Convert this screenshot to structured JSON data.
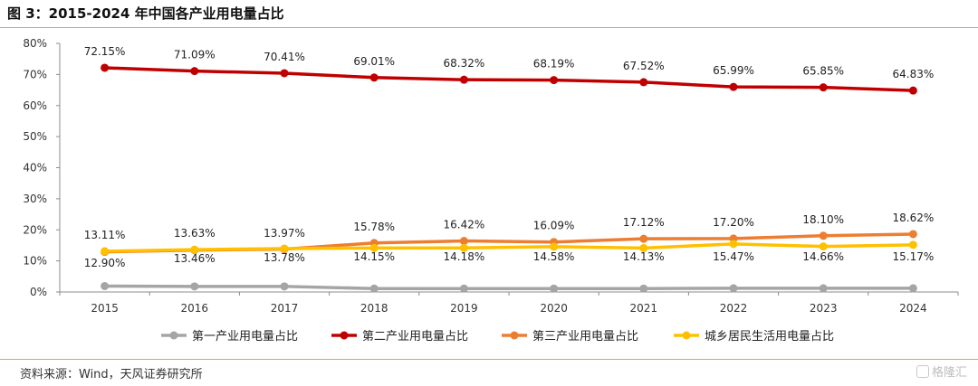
{
  "header": {
    "title": "图 3：2015-2024 年中国各产业用电量占比"
  },
  "footer": {
    "source": "资料来源：Wind，天风证券研究所",
    "watermark": "格隆汇"
  },
  "colors": {
    "primary": "#a5a5a5",
    "secondary": "#c00000",
    "tertiary": "#ed7d31",
    "residential": "#ffc000",
    "rule": "#e4a060"
  },
  "chart_data": {
    "type": "line",
    "categories": [
      "2015",
      "2016",
      "2017",
      "2018",
      "2019",
      "2020",
      "2021",
      "2022",
      "2023",
      "2024"
    ],
    "ylim": [
      0,
      80
    ],
    "yticks": [
      "0%",
      "10%",
      "20%",
      "30%",
      "40%",
      "50%",
      "60%",
      "70%",
      "80%"
    ],
    "legend_position": "bottom",
    "grid": false,
    "series": [
      {
        "name": "第一产业用电量占比",
        "color": "#a5a5a5",
        "values": [
          1.9,
          1.8,
          1.8,
          1.1,
          1.1,
          1.1,
          1.1,
          1.2,
          1.2,
          1.2
        ],
        "labels": []
      },
      {
        "name": "第二产业用电量占比",
        "color": "#c00000",
        "values": [
          72.15,
          71.09,
          70.41,
          69.01,
          68.32,
          68.19,
          67.52,
          65.99,
          65.85,
          64.83
        ],
        "labels": [
          "72.15%",
          "71.09%",
          "70.41%",
          "69.01%",
          "68.32%",
          "68.19%",
          "67.52%",
          "65.99%",
          "65.85%",
          "64.83%"
        ]
      },
      {
        "name": "第三产业用电量占比",
        "color": "#ed7d31",
        "values": [
          12.9,
          13.46,
          13.78,
          15.78,
          16.42,
          16.09,
          17.12,
          17.2,
          18.1,
          18.62
        ],
        "labels": [
          "12.90%",
          "13.46%",
          "13.78%",
          "15.78%",
          "16.42%",
          "16.09%",
          "17.12%",
          "17.20%",
          "18.10%",
          "18.62%"
        ]
      },
      {
        "name": "城乡居民生活用电量占比",
        "color": "#ffc000",
        "values": [
          13.11,
          13.63,
          13.97,
          14.15,
          14.18,
          14.58,
          14.13,
          15.47,
          14.66,
          15.17
        ],
        "labels": [
          "13.11%",
          "13.63%",
          "13.97%",
          "14.15%",
          "14.18%",
          "14.58%",
          "14.13%",
          "15.47%",
          "14.66%",
          "15.17%"
        ]
      }
    ]
  }
}
